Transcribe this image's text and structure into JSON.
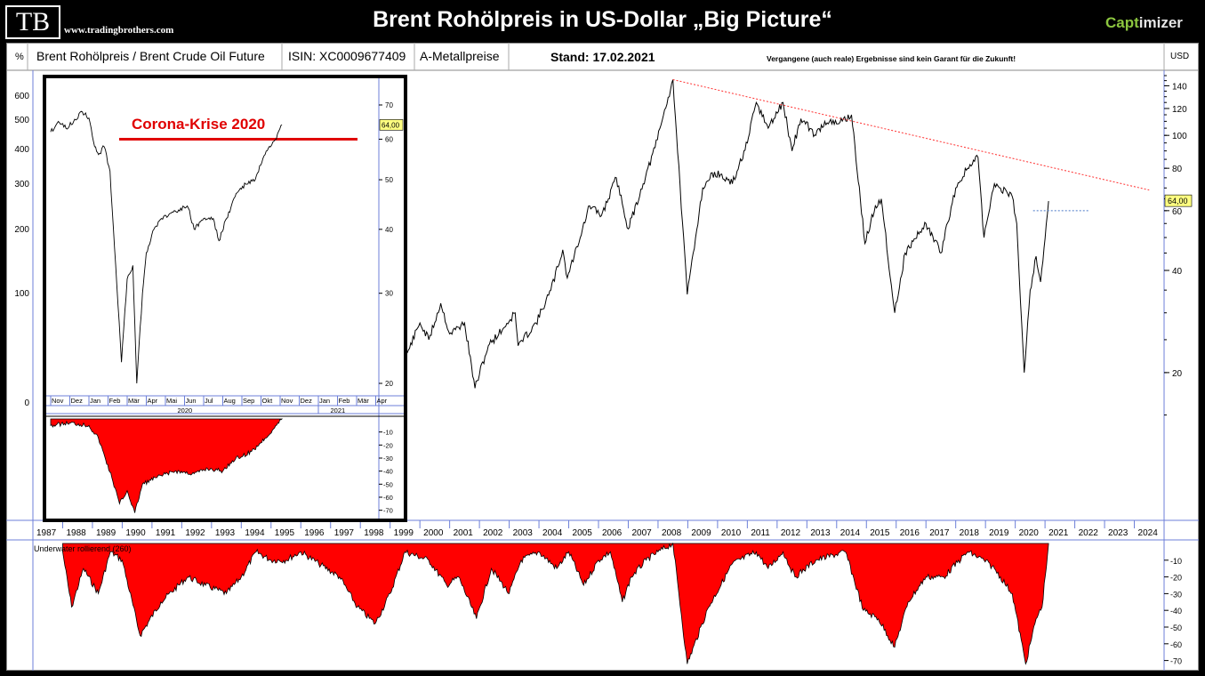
{
  "header": {
    "logo": "TB",
    "site": "www.tradingbrothers.com",
    "title": "Brent Rohölpreis in US-Dollar „Big Picture“",
    "brand_part1": "Capt",
    "brand_part2": "imizer",
    "brand_color": "#8cc63f"
  },
  "infobar": {
    "left_unit": "%",
    "name": "Brent Rohölpreis / Brent Crude Oil Future",
    "isin": "ISIN: XC0009677409",
    "category": "A-Metallpreise",
    "stand": "Stand: 17.02.2021",
    "disclaimer": "Vergangene (auch reale) Ergebnisse sind kein Garant  für die Zukunft!",
    "right_unit": "USD"
  },
  "chart_data": [
    {
      "type": "line",
      "id": "main",
      "x_unit": "year",
      "xlim": [
        1987,
        2025
      ],
      "x_ticks": [
        1987,
        1988,
        1989,
        1990,
        1991,
        1992,
        1993,
        1994,
        1995,
        1996,
        1997,
        1998,
        1999,
        2000,
        2001,
        2002,
        2003,
        2004,
        2005,
        2006,
        2007,
        2008,
        2009,
        2010,
        2011,
        2012,
        2013,
        2014,
        2015,
        2016,
        2017,
        2018,
        2019,
        2020,
        2021,
        2022,
        2023,
        2024
      ],
      "y_scale": "log",
      "ylim": [
        14,
        150
      ],
      "right_ticks": [
        20,
        40,
        60,
        80,
        100,
        120,
        140
      ],
      "left_ticks": [
        "600",
        "500",
        "400",
        "300",
        "200",
        "100",
        "0"
      ],
      "last_value_label": "64,00",
      "last_value": 64,
      "series": [
        {
          "points": [
            [
              1998.9,
              19
            ],
            [
              1999.5,
              22
            ],
            [
              2000.0,
              28
            ],
            [
              2000.3,
              25
            ],
            [
              2000.7,
              32
            ],
            [
              2001.0,
              26
            ],
            [
              2001.5,
              28
            ],
            [
              2001.85,
              18
            ],
            [
              2002.3,
              24
            ],
            [
              2002.8,
              27
            ],
            [
              2003.2,
              30
            ],
            [
              2003.3,
              24
            ],
            [
              2003.9,
              28
            ],
            [
              2004.4,
              35
            ],
            [
              2004.8,
              46
            ],
            [
              2004.95,
              38
            ],
            [
              2005.7,
              62
            ],
            [
              2006.1,
              58
            ],
            [
              2006.6,
              75
            ],
            [
              2007.0,
              53
            ],
            [
              2007.5,
              72
            ],
            [
              2007.9,
              92
            ],
            [
              2008.5,
              146
            ],
            [
              2008.98,
              34
            ],
            [
              2009.5,
              70
            ],
            [
              2009.9,
              78
            ],
            [
              2010.5,
              72
            ],
            [
              2011.0,
              95
            ],
            [
              2011.3,
              125
            ],
            [
              2011.7,
              105
            ],
            [
              2012.2,
              125
            ],
            [
              2012.5,
              90
            ],
            [
              2012.8,
              112
            ],
            [
              2013.3,
              100
            ],
            [
              2013.6,
              110
            ],
            [
              2014.0,
              108
            ],
            [
              2014.5,
              115
            ],
            [
              2014.95,
              48
            ],
            [
              2015.3,
              62
            ],
            [
              2015.5,
              65
            ],
            [
              2015.95,
              30
            ],
            [
              2016.3,
              45
            ],
            [
              2016.8,
              52
            ],
            [
              2017.0,
              55
            ],
            [
              2017.5,
              45
            ],
            [
              2018.0,
              70
            ],
            [
              2018.4,
              80
            ],
            [
              2018.75,
              86
            ],
            [
              2018.95,
              50
            ],
            [
              2019.3,
              72
            ],
            [
              2019.9,
              66
            ],
            [
              2020.05,
              55
            ],
            [
              2020.3,
              20
            ],
            [
              2020.5,
              35
            ],
            [
              2020.7,
              44
            ],
            [
              2020.85,
              37
            ],
            [
              2021.12,
              64
            ]
          ]
        },
        {
          "name": "trendline",
          "points": [
            [
              2008.5,
              146
            ],
            [
              2024.5,
              69
            ]
          ],
          "color": "#ff3030"
        },
        {
          "name": "level",
          "points": [
            [
              2020.6,
              60
            ],
            [
              2022.5,
              60
            ]
          ],
          "color": "#4a78c8"
        }
      ]
    },
    {
      "type": "area",
      "id": "underwater_main",
      "label": "Underwater rollierend (260)",
      "ylim": [
        -75,
        0
      ],
      "y_ticks": [
        -10,
        -20,
        -30,
        -40,
        -50,
        -60,
        -70
      ],
      "fill": "#ff0000",
      "points": [
        [
          1988.0,
          -5
        ],
        [
          1988.3,
          -38
        ],
        [
          1988.7,
          -15
        ],
        [
          1989.2,
          -30
        ],
        [
          1989.6,
          -5
        ],
        [
          1990.0,
          -10
        ],
        [
          1990.6,
          -55
        ],
        [
          1991.3,
          -35
        ],
        [
          1992.2,
          -20
        ],
        [
          1992.8,
          -25
        ],
        [
          1993.5,
          -30
        ],
        [
          1994.0,
          -20
        ],
        [
          1994.5,
          -5
        ],
        [
          1995.0,
          -10
        ],
        [
          1995.5,
          -10
        ],
        [
          1996.0,
          -5
        ],
        [
          1996.6,
          -12
        ],
        [
          1997.3,
          -20
        ],
        [
          1997.9,
          -38
        ],
        [
          1998.5,
          -48
        ],
        [
          1999.0,
          -30
        ],
        [
          1999.5,
          -5
        ],
        [
          2000.3,
          -10
        ],
        [
          2000.9,
          -25
        ],
        [
          2001.3,
          -20
        ],
        [
          2001.9,
          -45
        ],
        [
          2002.4,
          -15
        ],
        [
          2003.0,
          -30
        ],
        [
          2003.4,
          -10
        ],
        [
          2004.0,
          -5
        ],
        [
          2004.6,
          -15
        ],
        [
          2005.0,
          -5
        ],
        [
          2005.5,
          -25
        ],
        [
          2006.0,
          -10
        ],
        [
          2006.4,
          -5
        ],
        [
          2006.8,
          -35
        ],
        [
          2007.1,
          -20
        ],
        [
          2007.6,
          -10
        ],
        [
          2008.0,
          -5
        ],
        [
          2008.5,
          0
        ],
        [
          2008.98,
          -72
        ],
        [
          2009.7,
          -38
        ],
        [
          2010.5,
          -12
        ],
        [
          2011.3,
          -5
        ],
        [
          2011.7,
          -15
        ],
        [
          2012.2,
          -5
        ],
        [
          2012.6,
          -20
        ],
        [
          2013.3,
          -10
        ],
        [
          2014.3,
          -5
        ],
        [
          2014.9,
          -40
        ],
        [
          2015.4,
          -45
        ],
        [
          2015.95,
          -62
        ],
        [
          2016.4,
          -35
        ],
        [
          2017.0,
          -20
        ],
        [
          2017.6,
          -20
        ],
        [
          2018.4,
          -5
        ],
        [
          2018.95,
          -10
        ],
        [
          2019.3,
          -15
        ],
        [
          2019.9,
          -30
        ],
        [
          2020.35,
          -72
        ],
        [
          2020.7,
          -45
        ],
        [
          2020.9,
          -38
        ],
        [
          2021.12,
          0
        ]
      ]
    },
    {
      "type": "line",
      "id": "inset",
      "title": "Corona-Krise 2020",
      "months": [
        "Nov",
        "Dez",
        "Jan",
        "Feb",
        "Mär",
        "Apr",
        "Mai",
        "Jun",
        "Jul",
        "Aug",
        "Sep",
        "Okt",
        "Nov",
        "Dez",
        "Jan",
        "Feb",
        "Mär",
        "Apr"
      ],
      "years": [
        "2020",
        "2021"
      ],
      "y_scale": "log",
      "ylim": [
        18,
        80
      ],
      "y_ticks": [
        20,
        30,
        40,
        50,
        60,
        70
      ],
      "last_value_label": "64,00",
      "last_value": 64,
      "threshold": 60,
      "points": [
        [
          0.0,
          62
        ],
        [
          0.4,
          65
        ],
        [
          0.8,
          63
        ],
        [
          1.2,
          65
        ],
        [
          1.6,
          68
        ],
        [
          2.0,
          66
        ],
        [
          2.3,
          58
        ],
        [
          2.5,
          56
        ],
        [
          2.8,
          58
        ],
        [
          3.1,
          52
        ],
        [
          3.4,
          34
        ],
        [
          3.7,
          22
        ],
        [
          4.0,
          32
        ],
        [
          4.3,
          34
        ],
        [
          4.5,
          20
        ],
        [
          4.8,
          30
        ],
        [
          5.0,
          36
        ],
        [
          5.4,
          40
        ],
        [
          5.8,
          42
        ],
        [
          6.3,
          43
        ],
        [
          6.8,
          44
        ],
        [
          7.2,
          44
        ],
        [
          7.5,
          40
        ],
        [
          8.0,
          42
        ],
        [
          8.5,
          42
        ],
        [
          8.8,
          38
        ],
        [
          9.2,
          42
        ],
        [
          9.7,
          47
        ],
        [
          10.2,
          49
        ],
        [
          10.7,
          50
        ],
        [
          11.1,
          55
        ],
        [
          11.5,
          58
        ],
        [
          11.8,
          60
        ],
        [
          12.1,
          64
        ]
      ]
    },
    {
      "type": "area",
      "id": "underwater_inset",
      "ylim": [
        -75,
        0
      ],
      "y_ticks": [
        -10,
        -20,
        -30,
        -40,
        -50,
        -60,
        -70
      ],
      "fill": "#ff0000",
      "points": [
        [
          0.0,
          -5
        ],
        [
          1.0,
          -3
        ],
        [
          2.0,
          -5
        ],
        [
          2.5,
          -15
        ],
        [
          3.2,
          -45
        ],
        [
          3.6,
          -65
        ],
        [
          4.0,
          -55
        ],
        [
          4.4,
          -72
        ],
        [
          4.8,
          -50
        ],
        [
          5.5,
          -45
        ],
        [
          6.5,
          -40
        ],
        [
          7.5,
          -42
        ],
        [
          8.2,
          -38
        ],
        [
          9.0,
          -40
        ],
        [
          9.5,
          -32
        ],
        [
          10.5,
          -25
        ],
        [
          11.2,
          -15
        ],
        [
          12.1,
          0
        ]
      ]
    }
  ]
}
